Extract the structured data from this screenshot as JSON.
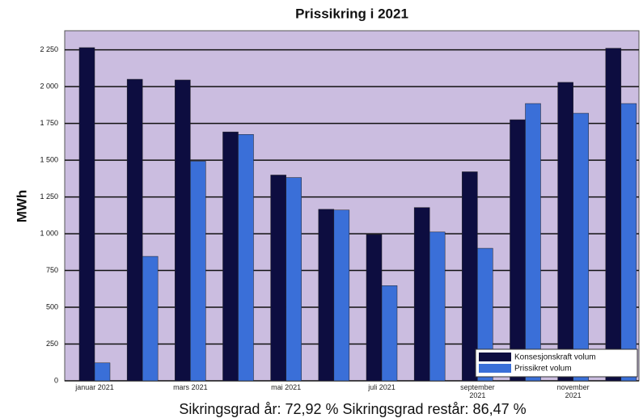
{
  "chart_data": {
    "type": "bar",
    "title": "Prissikring i 2021",
    "y_label": "MWh",
    "categories": [
      "januar 2021",
      null,
      "mars 2021",
      null,
      "mai 2021",
      null,
      "juli 2021",
      null,
      "september 2021",
      null,
      "november 2021",
      null
    ],
    "series": [
      {
        "name": "Konsesjonskraft volum",
        "color": "#0d0d40",
        "values": [
          2265,
          2050,
          2045,
          1692,
          1399,
          1166,
          995,
          1178,
          1421,
          1775,
          2029,
          2261
        ]
      },
      {
        "name": "Prissikret volum",
        "color": "#3a6fd8",
        "values": [
          122,
          846,
          1493,
          1675,
          1382,
          1161,
          647,
          1012,
          901,
          1885,
          1819,
          1885
        ]
      }
    ],
    "ylim": [
      0,
      2380
    ],
    "yticks": [
      0,
      {
        "value": 250,
        "label": "250"
      },
      {
        "value": 500,
        "label": "500"
      },
      {
        "value": 750,
        "label": "750"
      },
      {
        "value": 1000,
        "label": "1 000"
      },
      {
        "value": 1250,
        "label": "1 250"
      },
      {
        "value": 1500,
        "label": "1 500"
      },
      {
        "value": 1750,
        "label": "1 750"
      },
      {
        "value": 2000,
        "label": "2 000"
      },
      {
        "value": 2250,
        "label": "2 250"
      }
    ],
    "grid": true,
    "legend": "lower right",
    "background": "#cbbde0",
    "annotation": "Sikringsgrad år: 72,92 % Sikringsgrad restår: 86,47 %"
  }
}
